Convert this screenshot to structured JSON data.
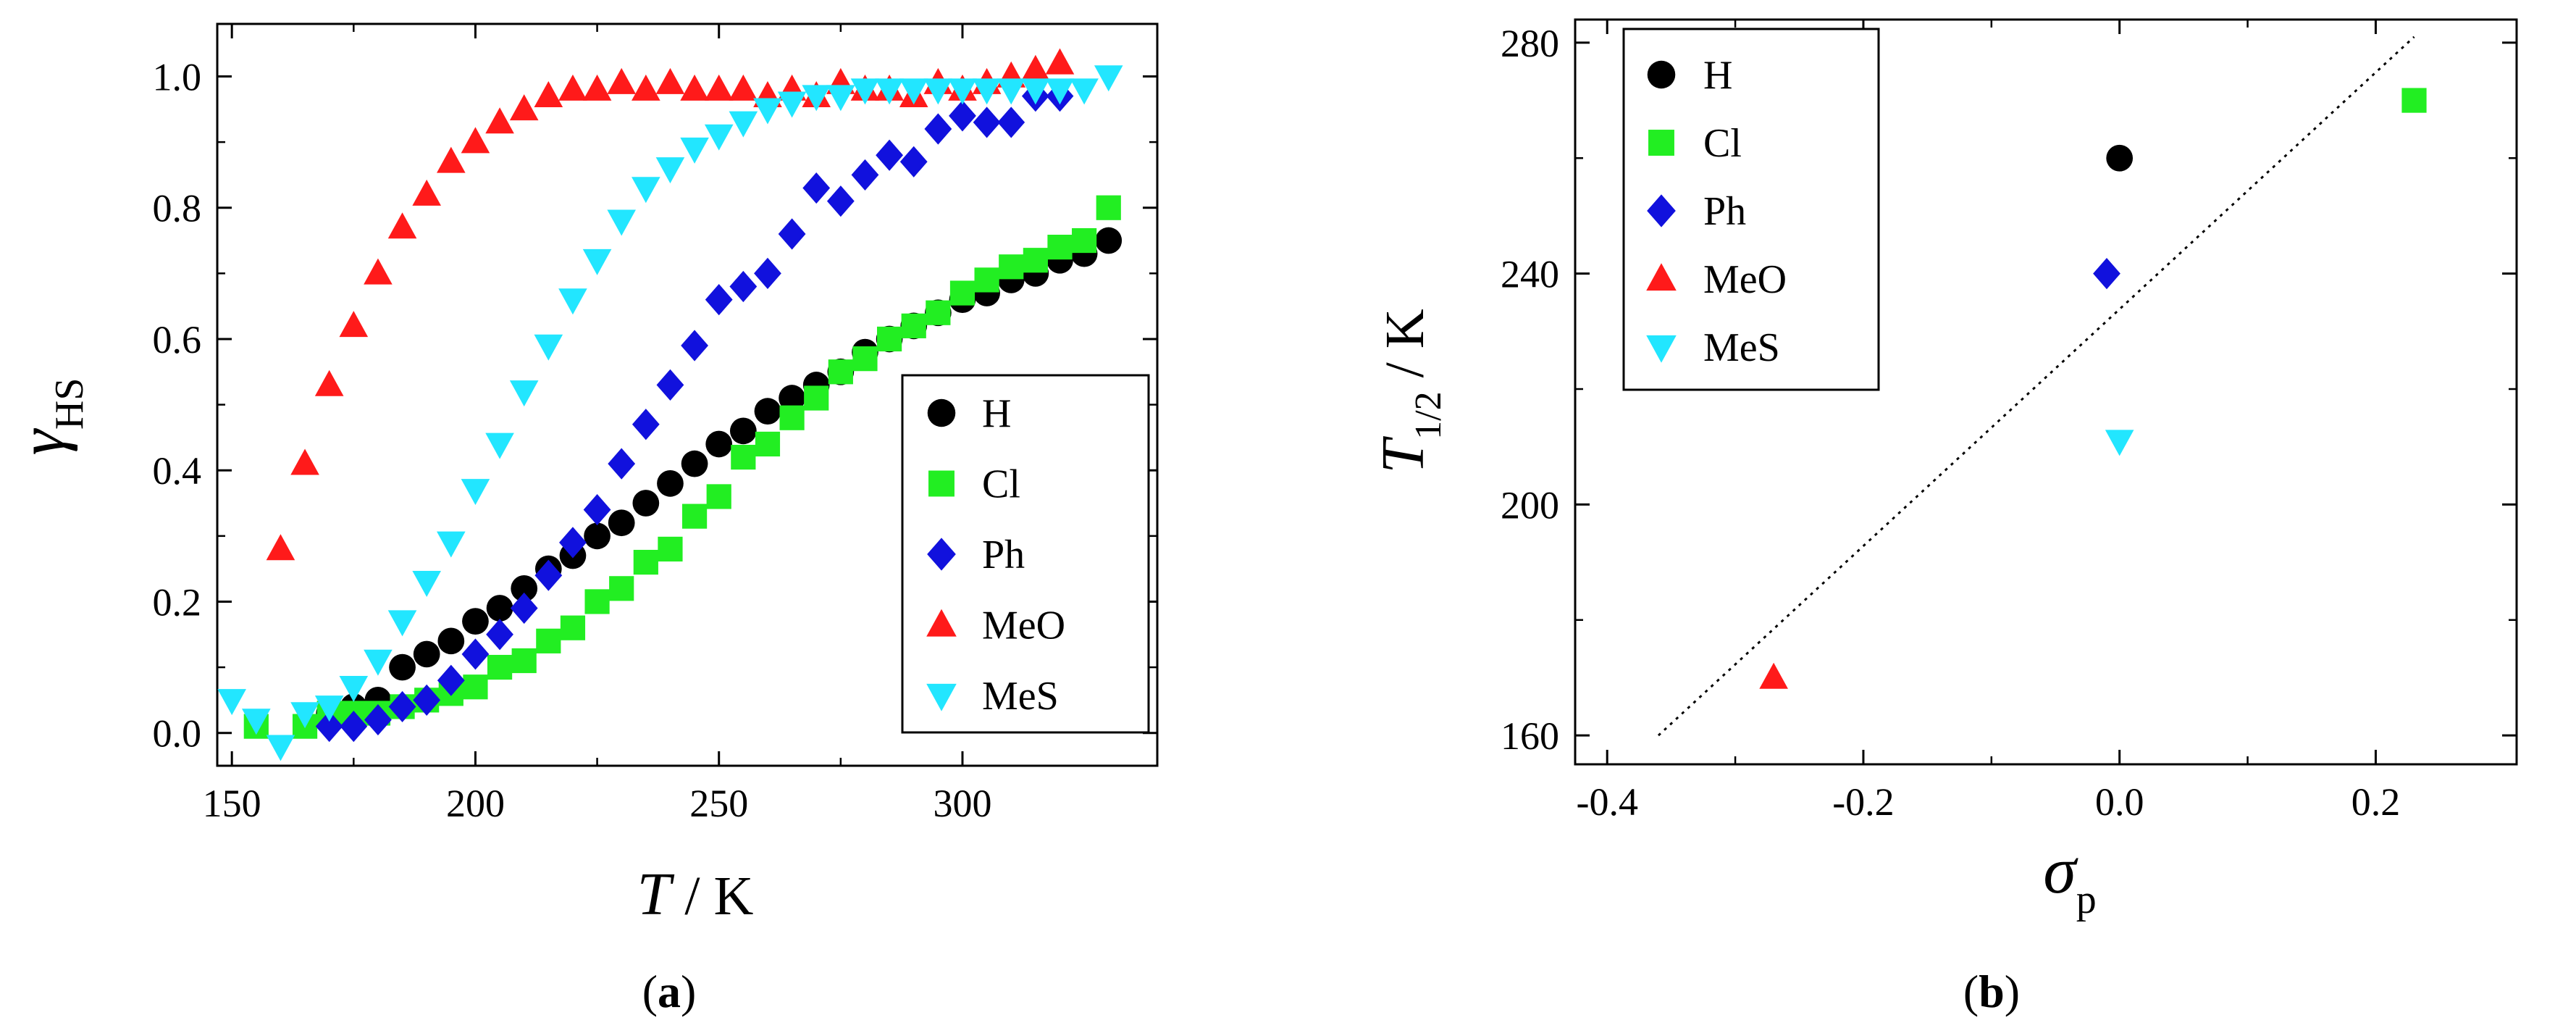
{
  "figure": {
    "panels": [
      {
        "label_open": "(",
        "label_letter": "a",
        "label_close": ")"
      },
      {
        "label_open": "(",
        "label_letter": "b",
        "label_close": ")"
      }
    ]
  },
  "series_styles": {
    "H": {
      "color": "#000000",
      "marker": "circle"
    },
    "Cl": {
      "color": "#22ee22",
      "marker": "square"
    },
    "Ph": {
      "color": "#1111dd",
      "marker": "diamond"
    },
    "MeO": {
      "color": "#ff1a1a",
      "marker": "triangle-up"
    },
    "MeS": {
      "color": "#22e6ff",
      "marker": "triangle-down"
    }
  },
  "chart_data": [
    {
      "type": "scatter",
      "panel": "a",
      "xlabel": {
        "italic": "T",
        "rest": " / K"
      },
      "ylabel": {
        "italic": "γ",
        "sub": "HS"
      },
      "xlim": [
        147,
        340
      ],
      "ylim": [
        -0.05,
        1.08
      ],
      "xticks": [
        150,
        200,
        250,
        300
      ],
      "xtick_labels": [
        "150",
        "200",
        "250",
        "300"
      ],
      "yticks": [
        0.0,
        0.2,
        0.4,
        0.6,
        0.8,
        1.0
      ],
      "ytick_labels": [
        "0.0",
        "0.2",
        "0.4",
        "0.6",
        "0.8",
        "1.0"
      ],
      "grid": false,
      "legend": {
        "position": "bottom-right",
        "entries": [
          "H",
          "Cl",
          "Ph",
          "MeO",
          "MeS"
        ]
      },
      "series": [
        {
          "name": "H",
          "x": [
            170,
            175,
            180,
            185,
            190,
            195,
            200,
            205,
            210,
            215,
            220,
            225,
            230,
            235,
            240,
            245,
            250,
            255,
            260,
            265,
            270,
            275,
            280,
            285,
            290,
            295,
            300,
            305,
            310,
            315,
            320,
            325,
            330
          ],
          "y": [
            0.03,
            0.04,
            0.05,
            0.1,
            0.12,
            0.14,
            0.17,
            0.19,
            0.22,
            0.25,
            0.27,
            0.3,
            0.32,
            0.35,
            0.38,
            0.41,
            0.44,
            0.46,
            0.49,
            0.51,
            0.53,
            0.55,
            0.58,
            0.6,
            0.62,
            0.64,
            0.66,
            0.67,
            0.69,
            0.7,
            0.72,
            0.73,
            0.75
          ]
        },
        {
          "name": "Cl",
          "x": [
            155,
            165,
            170,
            175,
            180,
            185,
            190,
            195,
            200,
            205,
            210,
            215,
            220,
            225,
            230,
            235,
            240,
            245,
            250,
            255,
            260,
            265,
            270,
            275,
            280,
            285,
            290,
            295,
            300,
            305,
            310,
            315,
            320,
            325,
            330
          ],
          "y": [
            0.01,
            0.01,
            0.03,
            0.03,
            0.03,
            0.04,
            0.05,
            0.06,
            0.07,
            0.1,
            0.11,
            0.14,
            0.16,
            0.2,
            0.22,
            0.26,
            0.28,
            0.33,
            0.36,
            0.42,
            0.44,
            0.48,
            0.51,
            0.55,
            0.57,
            0.6,
            0.62,
            0.64,
            0.67,
            0.69,
            0.71,
            0.72,
            0.74,
            0.75,
            0.8
          ]
        },
        {
          "name": "Ph",
          "x": [
            170,
            175,
            180,
            185,
            190,
            195,
            200,
            205,
            210,
            215,
            220,
            225,
            230,
            235,
            240,
            245,
            250,
            255,
            260,
            265,
            270,
            275,
            280,
            285,
            290,
            295,
            300,
            305,
            310,
            315,
            320
          ],
          "y": [
            0.01,
            0.01,
            0.02,
            0.04,
            0.05,
            0.08,
            0.12,
            0.15,
            0.19,
            0.24,
            0.29,
            0.34,
            0.41,
            0.47,
            0.53,
            0.59,
            0.66,
            0.68,
            0.7,
            0.76,
            0.83,
            0.81,
            0.85,
            0.88,
            0.87,
            0.92,
            0.94,
            0.93,
            0.93,
            0.97,
            0.97
          ]
        },
        {
          "name": "MeO",
          "x": [
            160,
            165,
            170,
            175,
            180,
            185,
            190,
            195,
            200,
            205,
            210,
            215,
            220,
            225,
            230,
            235,
            240,
            245,
            250,
            255,
            260,
            265,
            270,
            275,
            280,
            285,
            290,
            295,
            300,
            305,
            310,
            315,
            320
          ],
          "y": [
            0.28,
            0.41,
            0.53,
            0.62,
            0.7,
            0.77,
            0.82,
            0.87,
            0.9,
            0.93,
            0.95,
            0.97,
            0.98,
            0.98,
            0.99,
            0.98,
            0.99,
            0.98,
            0.98,
            0.98,
            0.97,
            0.98,
            0.97,
            0.99,
            0.98,
            0.98,
            0.97,
            0.99,
            0.98,
            0.99,
            1.0,
            1.01,
            1.02
          ]
        },
        {
          "name": "MeS",
          "x": [
            150,
            155,
            160,
            165,
            170,
            175,
            180,
            185,
            190,
            195,
            200,
            205,
            210,
            215,
            220,
            225,
            230,
            235,
            240,
            245,
            250,
            255,
            260,
            265,
            270,
            275,
            280,
            285,
            290,
            295,
            300,
            305,
            310,
            315,
            320,
            325,
            330
          ],
          "y": [
            0.05,
            0.02,
            -0.02,
            0.03,
            0.04,
            0.07,
            0.11,
            0.17,
            0.23,
            0.29,
            0.37,
            0.44,
            0.52,
            0.59,
            0.66,
            0.72,
            0.78,
            0.83,
            0.86,
            0.89,
            0.91,
            0.93,
            0.95,
            0.96,
            0.97,
            0.97,
            0.98,
            0.98,
            0.98,
            0.98,
            0.98,
            0.98,
            0.98,
            0.98,
            0.98,
            0.98,
            1.0
          ]
        }
      ]
    },
    {
      "type": "scatter",
      "panel": "b",
      "xlabel": {
        "italic": "σ",
        "sub": "p"
      },
      "ylabel": {
        "italic": "T",
        "sub": "1/2",
        "rest": " / K"
      },
      "xlim": [
        -0.425,
        0.31
      ],
      "ylim": [
        155,
        284
      ],
      "xticks": [
        -0.4,
        -0.2,
        0.0,
        0.2
      ],
      "xtick_labels": [
        "-0.4",
        "-0.2",
        "0.0",
        "0.2"
      ],
      "yticks": [
        160,
        200,
        240,
        280
      ],
      "ytick_labels": [
        "160",
        "200",
        "240",
        "280"
      ],
      "grid": false,
      "legend": {
        "position": "top-left",
        "entries": [
          "H",
          "Cl",
          "Ph",
          "MeO",
          "MeS"
        ]
      },
      "series": [
        {
          "name": "H",
          "x": [
            0.0
          ],
          "y": [
            260
          ]
        },
        {
          "name": "Cl",
          "x": [
            0.23
          ],
          "y": [
            270
          ]
        },
        {
          "name": "Ph",
          "x": [
            -0.01
          ],
          "y": [
            240
          ]
        },
        {
          "name": "MeO",
          "x": [
            -0.27
          ],
          "y": [
            170
          ]
        },
        {
          "name": "MeS",
          "x": [
            0.0
          ],
          "y": [
            211
          ]
        }
      ],
      "fit_line": {
        "style": "dotted",
        "x": [
          -0.36,
          0.23
        ],
        "y": [
          160,
          281
        ]
      }
    }
  ]
}
